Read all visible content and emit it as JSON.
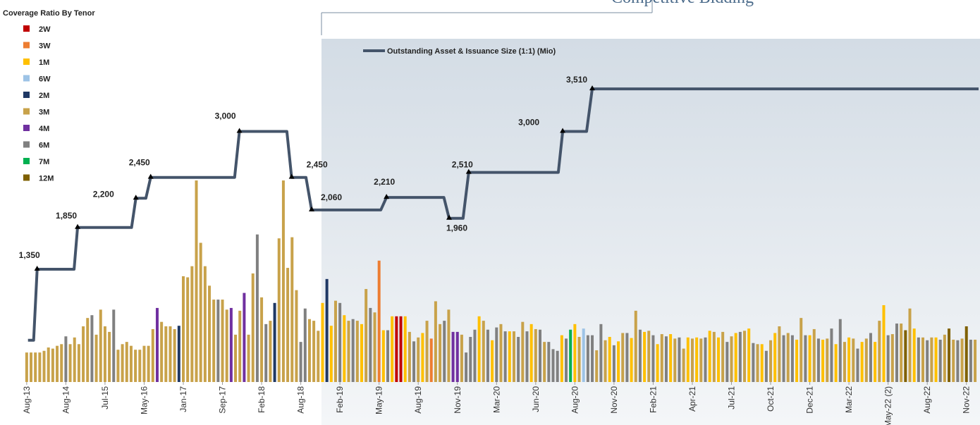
{
  "chart_data": {
    "type": "bar-line",
    "title": "Competitive Bidding",
    "legend_title": "Coverage Ratio By Tenor",
    "legend": [
      {
        "name": "2W",
        "color": "#c00000"
      },
      {
        "name": "3W",
        "color": "#ed7d31"
      },
      {
        "name": "1M",
        "color": "#ffc000"
      },
      {
        "name": "6W",
        "color": "#9dc3e6"
      },
      {
        "name": "2M",
        "color": "#1f3864"
      },
      {
        "name": "3M",
        "color": "#c8a24a"
      },
      {
        "name": "4M",
        "color": "#7030a0"
      },
      {
        "name": "6M",
        "color": "#808080"
      },
      {
        "name": "7M",
        "color": "#00b050"
      },
      {
        "name": "12M",
        "color": "#7f6000"
      }
    ],
    "bars": {
      "values": [
        0.53,
        0.53,
        0.53,
        0.53,
        0.56,
        0.62,
        0.6,
        0.65,
        0.68,
        0.82,
        0.68,
        0.8,
        0.68,
        1.0,
        1.15,
        1.2,
        0.85,
        1.3,
        1.0,
        0.9,
        1.3,
        0.58,
        0.68,
        0.72,
        0.65,
        0.58,
        0.58,
        0.65,
        0.65,
        0.95,
        1.33,
        1.08,
        1.0,
        1.0,
        0.95,
        1.01,
        1.9,
        1.88,
        2.08,
        3.62,
        2.5,
        2.08,
        1.73,
        1.48,
        1.48,
        1.48,
        1.3,
        1.33,
        0.85,
        1.28,
        1.6,
        0.85,
        1.95,
        2.65,
        1.52,
        1.04,
        1.1,
        1.42,
        2.58,
        3.62,
        2.05,
        2.6,
        1.65,
        0.72,
        1.32,
        1.13,
        1.1,
        0.92,
        1.42,
        1.85,
        1.01,
        1.46,
        1.42,
        1.2,
        1.1,
        1.13,
        1.1,
        1.04,
        1.67,
        1.33,
        1.25,
        2.18,
        0.93,
        0.93,
        1.18,
        1.18,
        1.18,
        1.18,
        0.9,
        0.73,
        0.8,
        0.88,
        1.1,
        0.78,
        1.45,
        1.04,
        1.1,
        1.3,
        0.9,
        0.9,
        0.85,
        0.53,
        0.81,
        0.94,
        1.18,
        1.1,
        0.94,
        0.75,
        0.98,
        1.04,
        0.91,
        0.91,
        0.91,
        0.81,
        1.08,
        0.91,
        1.04,
        0.95,
        0.94,
        0.72,
        0.72,
        0.59,
        0.56,
        0.84,
        0.78,
        0.94,
        1.04,
        0.81,
        0.96,
        0.84,
        0.84,
        0.57,
        1.04,
        0.75,
        0.81,
        0.66,
        0.73,
        0.88,
        0.88,
        0.79,
        1.28,
        0.94,
        0.9,
        0.92,
        0.84,
        0.68,
        0.86,
        0.82,
        0.86,
        0.78,
        0.8,
        0.6,
        0.8,
        0.78,
        0.8,
        0.78,
        0.8,
        0.92,
        0.9,
        0.8,
        0.9,
        0.72,
        0.82,
        0.88,
        0.9,
        0.92,
        0.96,
        0.7,
        0.68,
        0.68,
        0.56,
        0.75,
        0.88,
        1.0,
        0.84,
        0.88,
        0.84,
        0.76,
        1.15,
        0.84,
        0.84,
        0.95,
        0.78,
        0.76,
        0.78,
        0.96,
        0.68,
        1.13,
        0.72,
        0.8,
        0.78,
        0.6,
        0.72,
        0.78,
        0.88,
        0.72,
        1.1,
        1.38,
        0.84,
        0.86,
        1.05,
        1.05,
        0.93,
        1.32,
        0.96,
        0.8,
        0.8,
        0.75,
        0.8,
        0.8,
        0.76,
        0.85,
        0.96,
        0.76,
        0.75,
        0.78,
        1.0,
        0.76,
        0.76
      ],
      "tenors": [
        "3M",
        "3M",
        "3M",
        "3M",
        "3M",
        "3M",
        "3M",
        "3M",
        "3M",
        "6M",
        "3M",
        "3M",
        "3M",
        "3M",
        "3M",
        "6M",
        "3M",
        "3M",
        "3M",
        "3M",
        "6M",
        "3M",
        "3M",
        "3M",
        "3M",
        "3M",
        "3M",
        "3M",
        "3M",
        "3M",
        "4M",
        "3M",
        "3M",
        "3M",
        "3M",
        "2M",
        "3M",
        "3M",
        "3M",
        "3M",
        "3M",
        "3M",
        "3M",
        "3M",
        "6M",
        "3M",
        "3M",
        "4M",
        "3M",
        "3M",
        "4M",
        "3M",
        "3M",
        "6M",
        "3M",
        "6M",
        "3M",
        "2M",
        "3M",
        "3M",
        "3M",
        "3M",
        "3M",
        "6M",
        "6M",
        "3M",
        "3M",
        "3M",
        "1M",
        "2M",
        "1M",
        "3M",
        "6M",
        "1M",
        "3M",
        "6M",
        "3M",
        "1M",
        "3M",
        "6M",
        "3M",
        "3W",
        "1M",
        "6M",
        "1M",
        "2W",
        "2W",
        "1M",
        "3M",
        "6M",
        "3M",
        "1M",
        "3M",
        "3W",
        "3M",
        "3M",
        "6M",
        "3M",
        "4M",
        "4M",
        "3M",
        "6M",
        "6M",
        "6M",
        "1M",
        "3M",
        "6M",
        "1M",
        "6M",
        "3M",
        "6M",
        "1M",
        "3M",
        "6M",
        "3M",
        "6M",
        "1M",
        "3M",
        "6M",
        "3M",
        "6M",
        "6M",
        "6M",
        "1M",
        "6M",
        "7M",
        "1M",
        "3M",
        "6W",
        "6M",
        "6M",
        "3M",
        "6M",
        "3M",
        "1M",
        "6M",
        "1M",
        "3M",
        "6M",
        "1M",
        "3M",
        "6M",
        "1M",
        "3M",
        "6M",
        "1M",
        "3M",
        "6M",
        "1M",
        "3M",
        "6M",
        "3M",
        "1M",
        "3M",
        "1M",
        "3M",
        "6M",
        "1M",
        "3M",
        "1M",
        "3M",
        "6M",
        "3M",
        "1M",
        "6M",
        "3M",
        "1M",
        "6M",
        "3M",
        "1M",
        "6M",
        "3M",
        "1M",
        "3M",
        "6M",
        "3M",
        "6M",
        "1M",
        "3M",
        "6M",
        "1M",
        "3M",
        "6M",
        "1M",
        "3M",
        "6M",
        "1M",
        "6M",
        "3M",
        "1M",
        "3M",
        "6M",
        "1M",
        "3M",
        "6M",
        "1M",
        "3M",
        "1M",
        "6M",
        "3M",
        "6M",
        "3M",
        "12M",
        "3M",
        "1M",
        "6M",
        "3M",
        "6M",
        "3M",
        "1M",
        "6M",
        "3M",
        "12M",
        "3M",
        "6M",
        "3M",
        "12M",
        "6M",
        "3M"
      ]
    },
    "line": {
      "name": "Outstanding Asset & Issuance Size (1:1) (Mio)",
      "color": "#44546a",
      "x": [
        0.3,
        1.6,
        2.4,
        10.9,
        11.7,
        24.1,
        25.1,
        27.4,
        28.5,
        47.8,
        48.9,
        59.8,
        60.9,
        64.2,
        65.5,
        81.4,
        82.7,
        95.9,
        97.1,
        100.3,
        101.6,
        122.2,
        123.2,
        128.7,
        130,
        218.8
      ],
      "values": [
        500,
        500,
        1350,
        1350,
        1850,
        1850,
        2200,
        2200,
        2450,
        2450,
        3000,
        3000,
        2450,
        2450,
        2060,
        2060,
        2210,
        2210,
        1960,
        1960,
        2510,
        2510,
        3000,
        3000,
        3510,
        3510
      ],
      "value_labels": [
        null,
        null,
        "1,350",
        null,
        "1,850",
        null,
        "2,200",
        null,
        "2,450",
        null,
        "3,000",
        null,
        "2,450",
        null,
        "2,060",
        null,
        "2,210",
        null,
        "1,960",
        null,
        "2,510",
        null,
        "3,000",
        null,
        "3,510",
        null
      ]
    },
    "xlim": [
      -0.3,
      218.8
    ],
    "xticks": [
      {
        "value": 0,
        "label": "Aug-13"
      },
      {
        "value": 9,
        "label": "Aug-14"
      },
      {
        "value": 18,
        "label": "Jul-15"
      },
      {
        "value": 27,
        "label": "May-16"
      },
      {
        "value": 36,
        "label": "Jan-17"
      },
      {
        "value": 45,
        "label": "Sep-17"
      },
      {
        "value": 54,
        "label": "Feb-18"
      },
      {
        "value": 63,
        "label": "Aug-18"
      },
      {
        "value": 72,
        "label": "Feb-19"
      },
      {
        "value": 81,
        "label": "May-19"
      },
      {
        "value": 90,
        "label": "Aug-19"
      },
      {
        "value": 99,
        "label": "Nov-19"
      },
      {
        "value": 108,
        "label": "Mar-20"
      },
      {
        "value": 117,
        "label": "Jun-20"
      },
      {
        "value": 126,
        "label": "Aug-20"
      },
      {
        "value": 135,
        "label": "Nov-20"
      },
      {
        "value": 144,
        "label": "Feb-21"
      },
      {
        "value": 153,
        "label": "Apr-21"
      },
      {
        "value": 162,
        "label": "Jul-21"
      },
      {
        "value": 171,
        "label": "Oct-21"
      },
      {
        "value": 180,
        "label": "Dec-21"
      },
      {
        "value": 189,
        "label": "Mar-22"
      },
      {
        "value": 198,
        "label": "May-22 (2)"
      },
      {
        "value": 207,
        "label": "Aug-22"
      },
      {
        "value": 216,
        "label": "Nov-22"
      }
    ],
    "ylim": [
      0,
      4000
    ],
    "y2lim": [
      0,
      6
    ]
  }
}
